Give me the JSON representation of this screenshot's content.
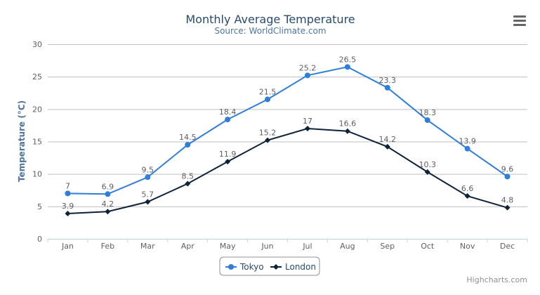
{
  "chart_data": {
    "type": "line",
    "title": "Monthly Average Temperature",
    "subtitle": "Source: WorldClimate.com",
    "xlabel": "",
    "ylabel": "Temperature (°C)",
    "ylim": [
      0,
      30
    ],
    "yticks": [
      0,
      5,
      10,
      15,
      20,
      25,
      30
    ],
    "grid": true,
    "legend_placement": "bottom",
    "categories": [
      "Jan",
      "Feb",
      "Mar",
      "Apr",
      "May",
      "Jun",
      "Jul",
      "Aug",
      "Sep",
      "Oct",
      "Nov",
      "Dec"
    ],
    "series": [
      {
        "name": "Tokyo",
        "color": "#2f7ed8",
        "marker": "circle",
        "values": [
          7,
          6.9,
          9.5,
          14.5,
          18.4,
          21.5,
          25.2,
          26.5,
          23.3,
          18.3,
          13.9,
          9.6
        ]
      },
      {
        "name": "London",
        "color": "#0d233a",
        "marker": "diamond",
        "values": [
          3.9,
          4.2,
          5.7,
          8.5,
          11.9,
          15.2,
          17,
          16.6,
          14.2,
          10.3,
          6.6,
          4.8
        ]
      }
    ],
    "data_labels": true
  },
  "credits": "Highcharts.com",
  "menu_icon": "hamburger-menu-icon"
}
